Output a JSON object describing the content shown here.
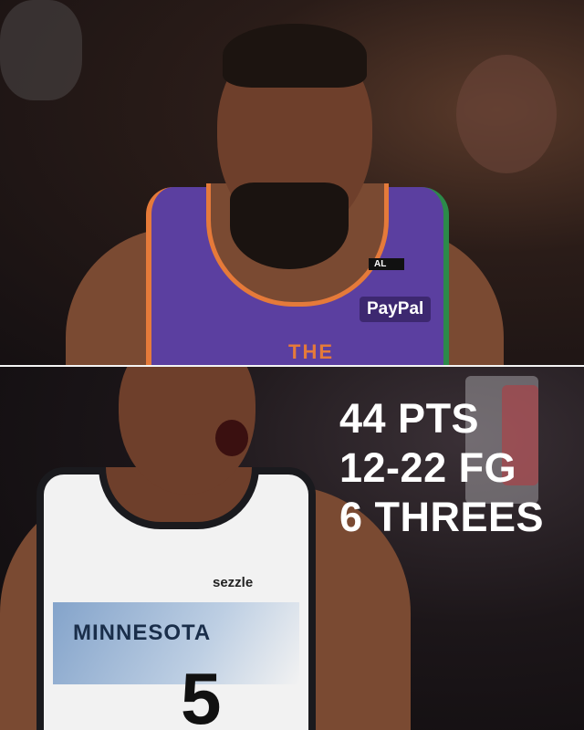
{
  "top_photo": {
    "jersey_color": "#5b3fa0",
    "jersey_sponsor": "PayPal",
    "jersey_patch": "AL",
    "jersey_chest_text": "THE"
  },
  "bottom_photo": {
    "jersey_color": "#f2f2f2",
    "jersey_sponsor": "sezzle",
    "jersey_team": "MINNESOTA",
    "jersey_number": "5"
  },
  "stats": {
    "line1": "44 PTS",
    "line2": "12-22 FG",
    "line3": "6 THREES",
    "text_color": "#ffffff"
  }
}
